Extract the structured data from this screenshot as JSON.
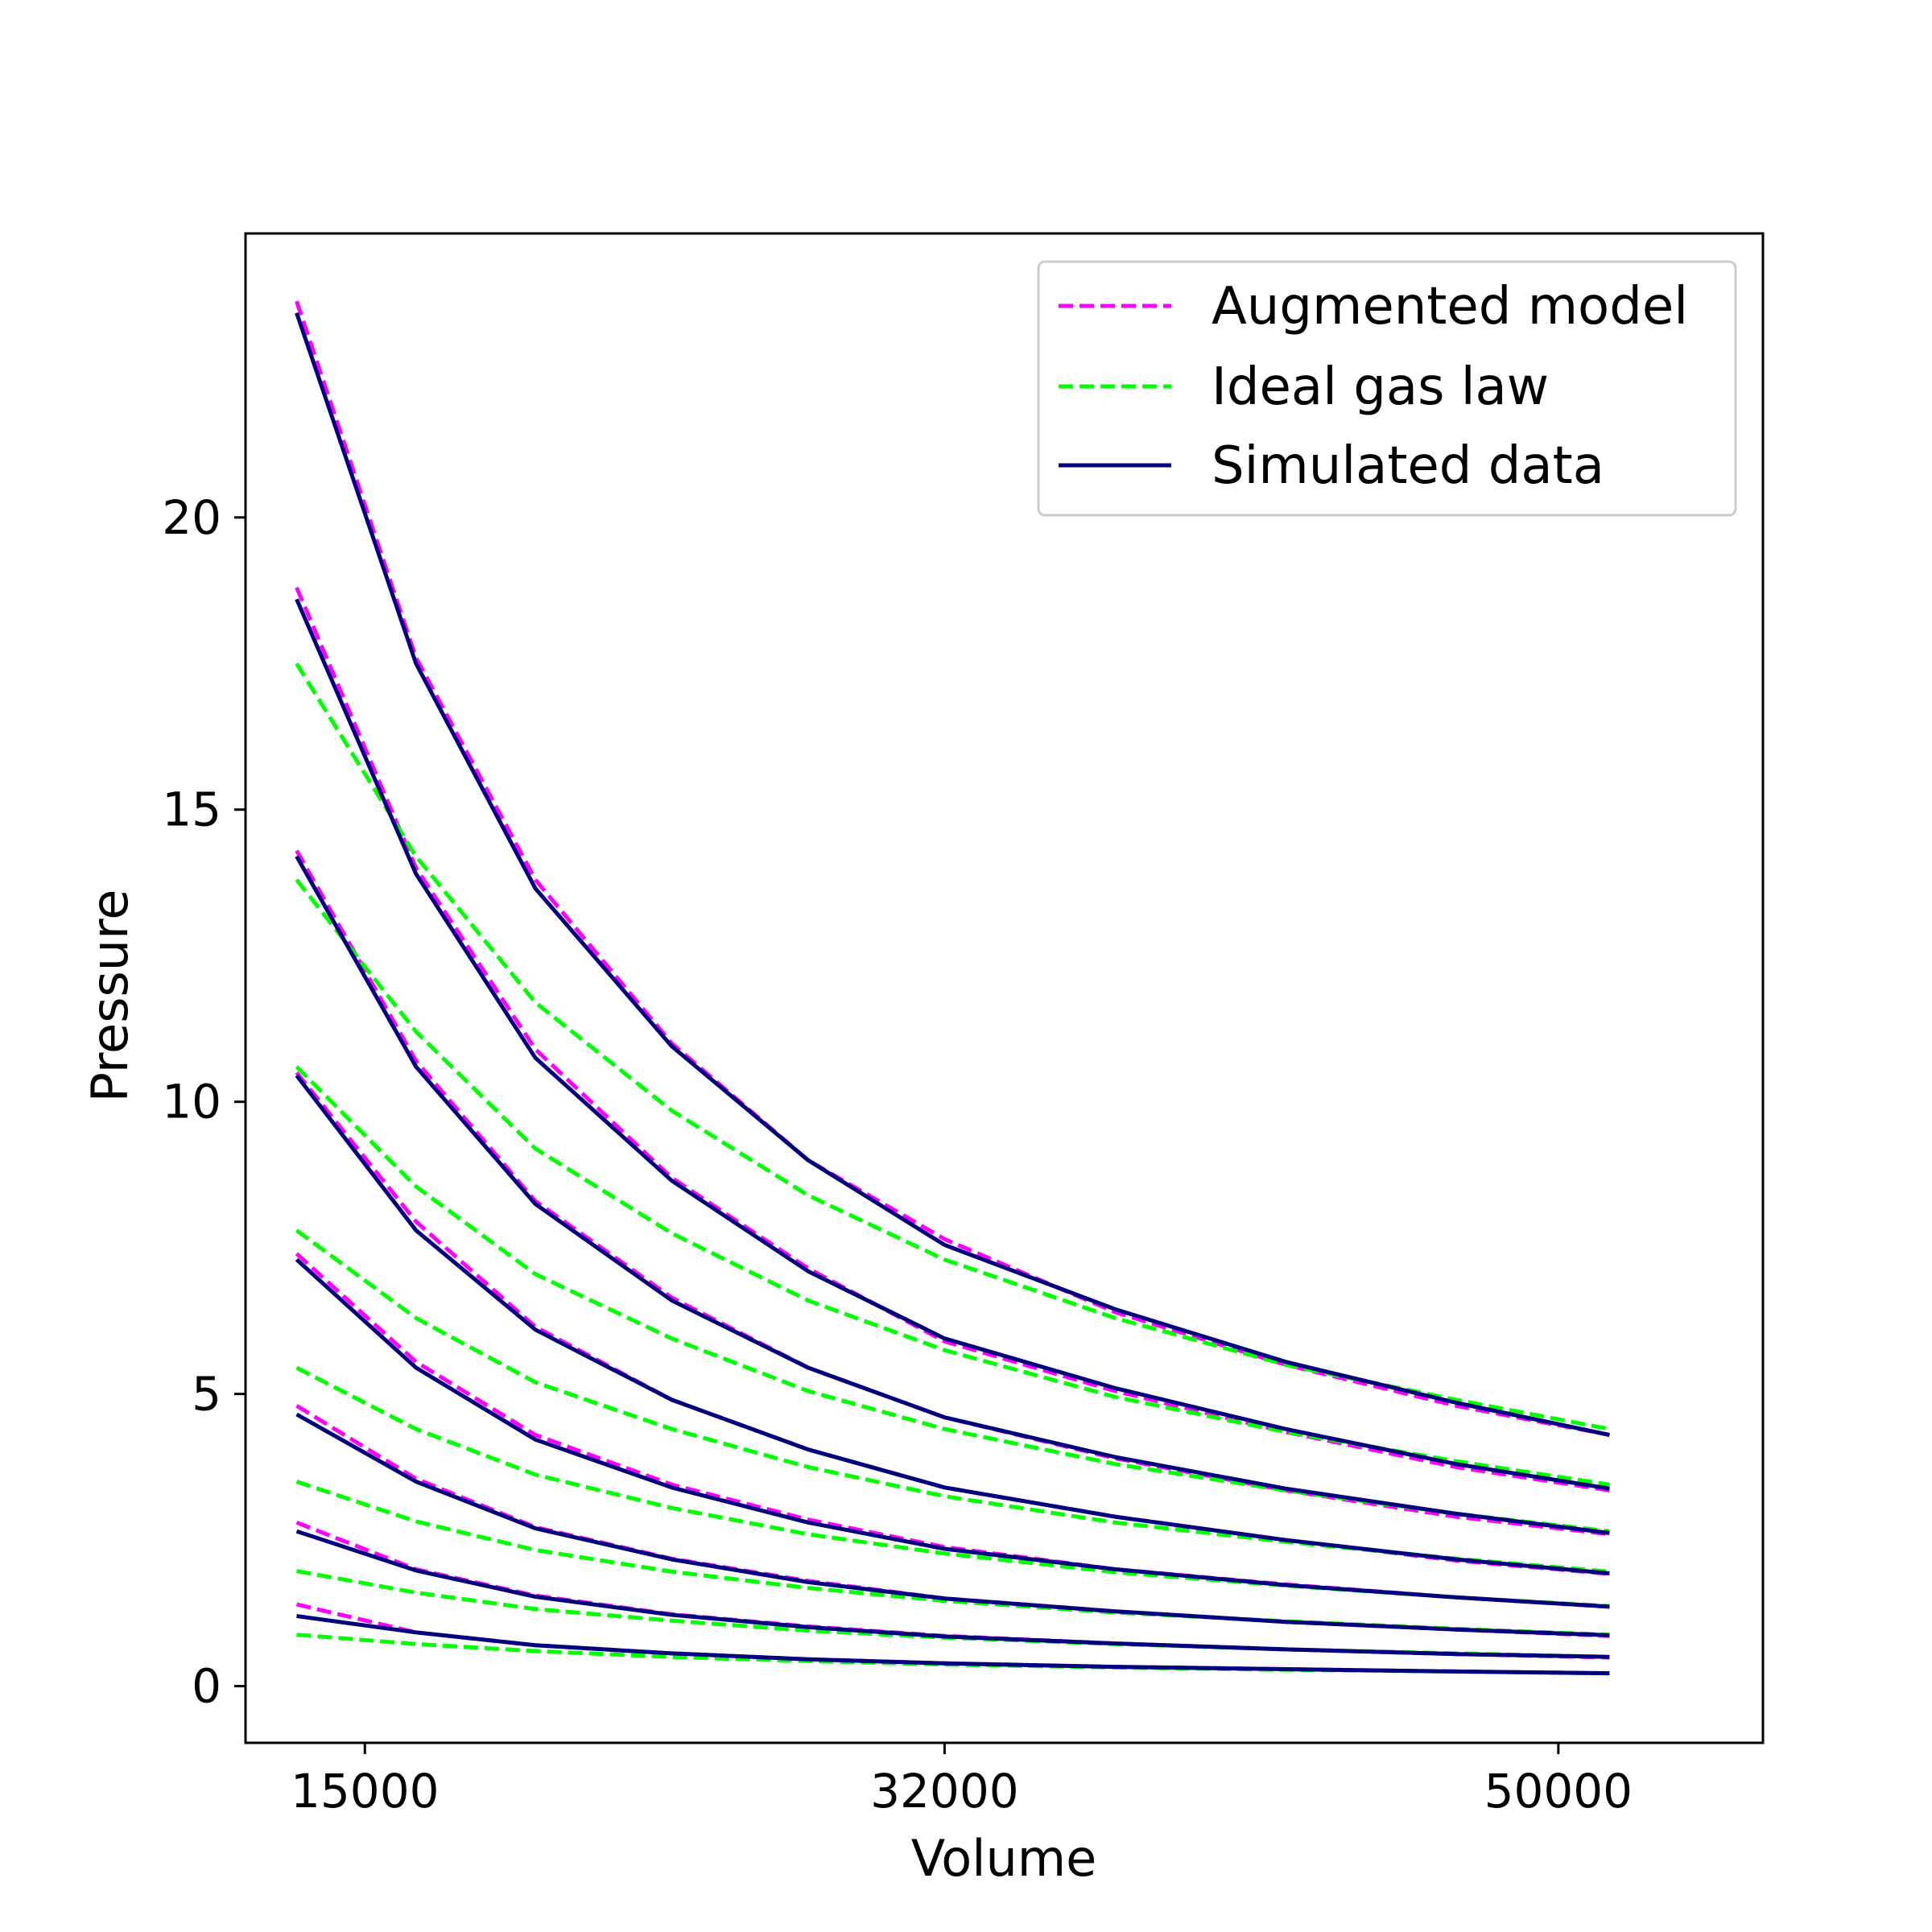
{
  "chart_data": {
    "type": "line",
    "title": "",
    "xlabel": "Volume",
    "ylabel": "Pressure",
    "xlim": [
      11500,
      56000
    ],
    "ylim": [
      -0.97,
      24.86
    ],
    "xticks": [
      15000,
      32000,
      50000
    ],
    "yticks": [
      0,
      5,
      10,
      15,
      20
    ],
    "grid": false,
    "legend_position": "top-right",
    "x": [
      13000,
      16500,
      20000,
      24000,
      28000,
      32000,
      37000,
      42000,
      47000,
      51500
    ],
    "series": [
      {
        "name": "Augmented model",
        "color": "#ff00ff",
        "style": "dashed",
        "group": "augmented",
        "values": [
          23.7,
          17.6,
          13.8,
          11.0,
          9.0,
          7.65,
          6.4,
          5.5,
          4.8,
          4.3
        ]
      },
      {
        "name": "Augmented model",
        "color": "#ff00ff",
        "style": "dashed",
        "group": "augmented",
        "values": [
          18.8,
          14.0,
          10.9,
          8.7,
          7.15,
          5.9,
          5.05,
          4.35,
          3.75,
          3.35
        ]
      },
      {
        "name": "Augmented model",
        "color": "#ff00ff",
        "style": "dashed",
        "group": "augmented",
        "values": [
          14.3,
          10.7,
          8.3,
          6.65,
          5.45,
          4.6,
          3.9,
          3.35,
          2.9,
          2.6
        ]
      },
      {
        "name": "Augmented model",
        "color": "#ff00ff",
        "style": "dashed",
        "group": "augmented",
        "values": [
          10.5,
          7.95,
          6.15,
          4.9,
          4.05,
          3.4,
          2.9,
          2.5,
          2.15,
          1.92
        ]
      },
      {
        "name": "Augmented model",
        "color": "#ff00ff",
        "style": "dashed",
        "group": "augmented",
        "values": [
          7.4,
          5.55,
          4.3,
          3.45,
          2.85,
          2.38,
          2.0,
          1.74,
          1.52,
          1.36
        ]
      },
      {
        "name": "Augmented model",
        "color": "#ff00ff",
        "style": "dashed",
        "group": "augmented",
        "values": [
          4.8,
          3.55,
          2.72,
          2.18,
          1.8,
          1.5,
          1.28,
          1.1,
          0.97,
          0.86
        ]
      },
      {
        "name": "Augmented model",
        "color": "#ff00ff",
        "style": "dashed",
        "group": "augmented",
        "values": [
          2.8,
          2.0,
          1.55,
          1.23,
          1.02,
          0.86,
          0.73,
          0.63,
          0.55,
          0.49
        ]
      },
      {
        "name": "Augmented model",
        "color": "#ff00ff",
        "style": "dashed",
        "group": "augmented",
        "values": [
          1.4,
          0.92,
          0.7,
          0.56,
          0.46,
          0.39,
          0.33,
          0.29,
          0.25,
          0.22
        ]
      },
      {
        "name": "Ideal gas law",
        "color": "#00ff00",
        "style": "dashed",
        "group": "ideal",
        "values": [
          17.5,
          14.2,
          11.7,
          9.85,
          8.4,
          7.3,
          6.3,
          5.5,
          4.9,
          4.4
        ]
      },
      {
        "name": "Ideal gas law",
        "color": "#00ff00",
        "style": "dashed",
        "group": "ideal",
        "values": [
          13.8,
          11.2,
          9.2,
          7.75,
          6.6,
          5.75,
          4.95,
          4.35,
          3.85,
          3.45
        ]
      },
      {
        "name": "Ideal gas law",
        "color": "#00ff00",
        "style": "dashed",
        "group": "ideal",
        "values": [
          10.6,
          8.55,
          7.05,
          5.95,
          5.05,
          4.4,
          3.8,
          3.35,
          2.95,
          2.65
        ]
      },
      {
        "name": "Ideal gas law",
        "color": "#00ff00",
        "style": "dashed",
        "group": "ideal",
        "values": [
          7.8,
          6.3,
          5.2,
          4.4,
          3.75,
          3.25,
          2.8,
          2.47,
          2.18,
          1.96
        ]
      },
      {
        "name": "Ideal gas law",
        "color": "#00ff00",
        "style": "dashed",
        "group": "ideal",
        "values": [
          5.45,
          4.4,
          3.62,
          3.05,
          2.6,
          2.27,
          1.95,
          1.72,
          1.52,
          1.37
        ]
      },
      {
        "name": "Ideal gas law",
        "color": "#00ff00",
        "style": "dashed",
        "group": "ideal",
        "values": [
          3.5,
          2.82,
          2.33,
          1.96,
          1.68,
          1.46,
          1.26,
          1.11,
          0.98,
          0.88
        ]
      },
      {
        "name": "Ideal gas law",
        "color": "#00ff00",
        "style": "dashed",
        "group": "ideal",
        "values": [
          1.97,
          1.6,
          1.32,
          1.12,
          0.95,
          0.83,
          0.72,
          0.63,
          0.56,
          0.5
        ]
      },
      {
        "name": "Ideal gas law",
        "color": "#00ff00",
        "style": "dashed",
        "group": "ideal",
        "values": [
          0.88,
          0.72,
          0.6,
          0.5,
          0.43,
          0.37,
          0.32,
          0.28,
          0.25,
          0.22
        ]
      },
      {
        "name": "Simulated data",
        "color": "#00007f",
        "style": "solid",
        "group": "simulated",
        "values": [
          23.5,
          17.5,
          13.65,
          10.95,
          9.0,
          7.55,
          6.45,
          5.55,
          4.85,
          4.3
        ]
      },
      {
        "name": "Simulated data",
        "color": "#00007f",
        "style": "solid",
        "group": "simulated",
        "values": [
          18.6,
          13.9,
          10.75,
          8.65,
          7.1,
          5.95,
          5.1,
          4.4,
          3.8,
          3.38
        ]
      },
      {
        "name": "Simulated data",
        "color": "#00007f",
        "style": "solid",
        "group": "simulated",
        "values": [
          14.2,
          10.6,
          8.25,
          6.6,
          5.45,
          4.6,
          3.92,
          3.38,
          2.95,
          2.62
        ]
      },
      {
        "name": "Simulated data",
        "color": "#00007f",
        "style": "solid",
        "group": "simulated",
        "values": [
          10.45,
          7.8,
          6.1,
          4.9,
          4.05,
          3.4,
          2.9,
          2.5,
          2.17,
          1.93
        ]
      },
      {
        "name": "Simulated data",
        "color": "#00007f",
        "style": "solid",
        "group": "simulated",
        "values": [
          7.3,
          5.45,
          4.22,
          3.4,
          2.8,
          2.35,
          2.0,
          1.73,
          1.52,
          1.36
        ]
      },
      {
        "name": "Simulated data",
        "color": "#00007f",
        "style": "solid",
        "group": "simulated",
        "values": [
          4.65,
          3.5,
          2.7,
          2.17,
          1.78,
          1.5,
          1.28,
          1.1,
          0.97,
          0.87
        ]
      },
      {
        "name": "Simulated data",
        "color": "#00007f",
        "style": "solid",
        "group": "simulated",
        "values": [
          2.65,
          1.98,
          1.53,
          1.22,
          1.01,
          0.85,
          0.73,
          0.63,
          0.55,
          0.5
        ]
      },
      {
        "name": "Simulated data",
        "color": "#00007f",
        "style": "solid",
        "group": "simulated",
        "values": [
          1.2,
          0.92,
          0.7,
          0.56,
          0.46,
          0.39,
          0.33,
          0.29,
          0.25,
          0.22
        ]
      }
    ],
    "legend": [
      {
        "label": "Augmented model",
        "color": "#ff00ff",
        "style": "dashed"
      },
      {
        "label": "Ideal gas law",
        "color": "#00ff00",
        "style": "dashed"
      },
      {
        "label": "Simulated data",
        "color": "#00007f",
        "style": "solid"
      }
    ]
  }
}
